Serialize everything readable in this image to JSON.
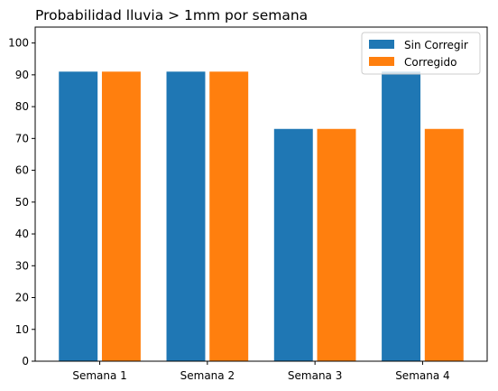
{
  "chart_data": {
    "type": "bar",
    "title": "Probabilidad lluvia > 1mm por semana",
    "xlabel": "",
    "ylabel": "",
    "categories": [
      "Semana 1",
      "Semana 2",
      "Semana 3",
      "Semana 4"
    ],
    "series": [
      {
        "name": "Sin Corregir",
        "color": "#1f77b4",
        "values": [
          91,
          91,
          73,
          91
        ]
      },
      {
        "name": "Corregido",
        "color": "#ff7f0e",
        "values": [
          91,
          91,
          73,
          73
        ]
      }
    ],
    "ylim": [
      0,
      105
    ],
    "yticks": [
      0,
      10,
      20,
      30,
      40,
      50,
      60,
      70,
      80,
      90,
      100
    ],
    "grid": false,
    "legend_position": "top-right"
  }
}
